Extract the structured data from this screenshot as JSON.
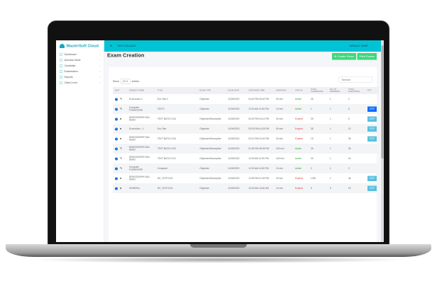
{
  "app": {
    "brand": "MasterSoft Cloud",
    "college": "TEST COLLEGE",
    "user": "DEFAULT USER"
  },
  "sidebar": {
    "items": [
      {
        "label": "Dashboard"
      },
      {
        "label": "Question Bank"
      },
      {
        "label": "Candidate"
      },
      {
        "label": "Examination"
      },
      {
        "label": "Reports"
      },
      {
        "label": "Client Level"
      }
    ]
  },
  "page": {
    "title": "Exam Creation",
    "create_label": "Create Exam",
    "print_label": "Print Exams",
    "show_label": "Show",
    "entries_value": "10",
    "entries_label": "entries",
    "search_placeholder": "Search"
  },
  "colors": {
    "header": "#00c4d6",
    "button": "#3dd87a",
    "active": "#2ca02c",
    "expired": "#e04040",
    "otp": "#5bc0de",
    "otp_selected": "#0d6efd"
  },
  "table": {
    "headers": [
      "EDIT",
      "SUBJECT NAME",
      "TITLE",
      "EXAM TYPE",
      "EXAM DATE",
      "START/END TIME",
      "DURATION",
      "STATUS",
      "TOTAL CANDIDATES",
      "NO. OF PAPERSET",
      "TOTAL QUESTIONS",
      "OTP"
    ],
    "rows": [
      {
        "icon": "pencil",
        "subject": "Economics-2",
        "title": "Eco Test 2",
        "type": "Objective",
        "date": "11/09/2020",
        "time": "04:40 PM-05:40 PM",
        "duration": "60 min",
        "status": "Active",
        "candidates": "35",
        "sets": "1",
        "questions": "2",
        "otp": ""
      },
      {
        "icon": "pencil",
        "subject": "Computer Fundamental",
        "title": "TEST1",
        "type": "Objective",
        "date": "11/09/2020",
        "time": "12:00 AM-11:59 PM",
        "duration": "10 min",
        "status": "Active",
        "candidates": "1",
        "sets": "1",
        "questions": "8",
        "otp": "OTP",
        "otp_style": "dark"
      },
      {
        "icon": "dot",
        "subject": "DEMOGRAPHY-BA-SEM3",
        "title": "TEST BATCH 104",
        "type": "Objective/Descriptive",
        "date": "11/09/2020",
        "time": "03:40 PM-04:10 PM",
        "duration": "30 min",
        "status": "Expired",
        "candidates": "39",
        "sets": "1",
        "questions": "6",
        "otp": "OTP"
      },
      {
        "icon": "dot",
        "subject": "Economics - 1",
        "title": "Eco Test",
        "type": "Objective",
        "date": "11/09/2020",
        "time": "03:25 PM-04:25 PM",
        "duration": "60 min",
        "status": "Expired",
        "candidates": "35",
        "sets": "1",
        "questions": "10",
        "otp": "OTP"
      },
      {
        "icon": "dot",
        "subject": "DEMOGRAPHY-BA-SEM3",
        "title": "TEST BATCH 103",
        "type": "Objective/Descriptive",
        "date": "11/09/2020",
        "time": "03:10 PM-03:40 PM",
        "duration": "30 min",
        "status": "Expired",
        "candidates": "15",
        "sets": "1",
        "questions": "35",
        "otp": "OTP"
      },
      {
        "icon": "pencil",
        "subject": "DEMOGRAPHY-BA-SEM3",
        "title": "TEST BATCH 102",
        "type": "Objective/Descriptive",
        "date": "11/09/2020",
        "time": "01:05 PM-08:05 PM",
        "duration": "420 min",
        "status": "Active",
        "candidates": "39",
        "sets": "1",
        "questions": "35",
        "otp": ""
      },
      {
        "icon": "pencil",
        "subject": "DEMOGRAPHY-BA-SEM3",
        "title": "TEST BATCH 101",
        "type": "Objective/Descriptive",
        "date": "11/09/2020",
        "time": "12:00 AM-11:59 PM",
        "duration": "420 min",
        "status": "Active",
        "candidates": "39",
        "sets": "1",
        "questions": "18",
        "otp": ""
      },
      {
        "icon": "pencil",
        "subject": "Computer Fundamental",
        "title": "Computer",
        "type": "Objective",
        "date": "11/09/2020",
        "time": "12:00 AM-11:59 PM",
        "duration": "10 min",
        "status": "Active",
        "candidates": "2",
        "sets": "1",
        "questions": "2",
        "otp": ""
      },
      {
        "icon": "dot",
        "subject": "DEMOGRAPHY-BA-SEM3",
        "title": "GK_TEST1102",
        "type": "Objective/Descriptive",
        "date": "11/09/2020",
        "time": "12:50 PM-01:30 PM",
        "duration": "40 min",
        "status": "Expired",
        "candidates": "1039",
        "sets": "1",
        "questions": "46",
        "otp": "OTP"
      },
      {
        "icon": "dot",
        "subject": "GENERAL",
        "title": "GK_TEST1101",
        "type": "Objective",
        "date": "11/09/2020",
        "time": "10:30 AM-10:40 AM",
        "duration": "10 min",
        "status": "Expired",
        "candidates": "5",
        "sets": "5",
        "questions": "15",
        "otp": "OTP"
      }
    ]
  }
}
